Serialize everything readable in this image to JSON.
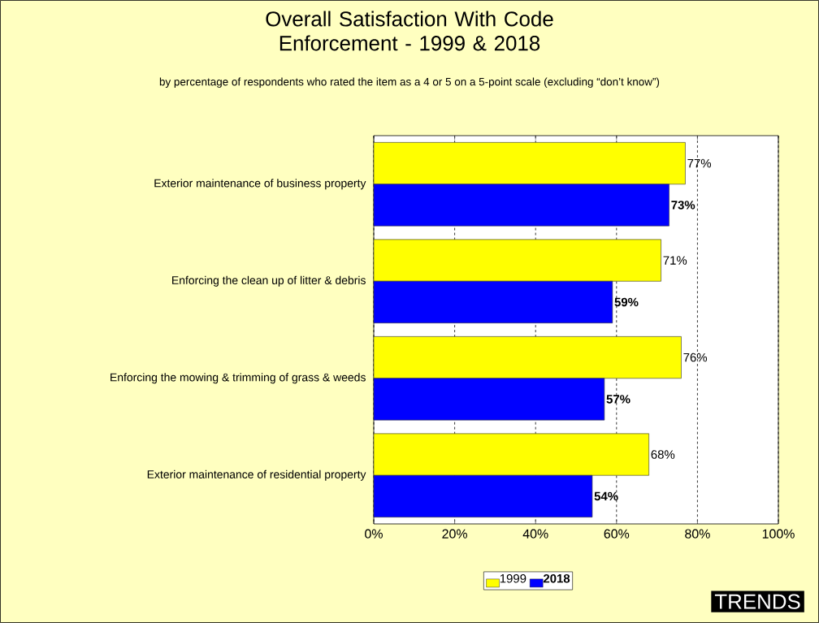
{
  "chart_data": {
    "type": "bar",
    "orientation": "horizontal",
    "title": "Overall Satisfaction With Code Enforcement - 1999 & 2018",
    "subtitle": "by percentage of respondents who rated the item as a 4 or 5 on a 5-point scale (excluding “don’t know”)",
    "categories": [
      "Exterior maintenance of business property",
      "Enforcing the clean up of litter & debris",
      "Enforcing the mowing & trimming of grass & weeds",
      "Exterior maintenance of residential property"
    ],
    "series": [
      {
        "name": "1999",
        "color": "#ffff00",
        "values": [
          77,
          71,
          76,
          68
        ],
        "value_labels": [
          "77%",
          "71%",
          "76%",
          "68%"
        ]
      },
      {
        "name": "2018",
        "color": "#0000ff",
        "values": [
          73,
          59,
          57,
          54
        ],
        "value_labels": [
          "73%",
          "59%",
          "57%",
          "54%"
        ]
      }
    ],
    "xlim": [
      0,
      100
    ],
    "xticks": [
      {
        "value": 0,
        "label": "0%"
      },
      {
        "value": 20,
        "label": "20%"
      },
      {
        "value": 40,
        "label": "40%"
      },
      {
        "value": 60,
        "label": "60%"
      },
      {
        "value": 80,
        "label": "80%"
      },
      {
        "value": 100,
        "label": "100%"
      }
    ],
    "grid": "x",
    "legend": "bottom",
    "annotations": [
      "TRENDS"
    ]
  }
}
